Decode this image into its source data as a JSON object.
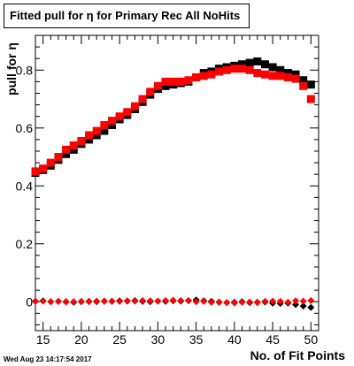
{
  "title": "Fitted pull for η for Primary Rec All NoHits",
  "chart_data": {
    "type": "scatter",
    "xlabel": "No. of Fit Points",
    "ylabel": "pull for η",
    "xlim": [
      14,
      51
    ],
    "ylim": [
      -0.1,
      0.92
    ],
    "xticks": [
      15,
      20,
      25,
      30,
      35,
      40,
      45,
      50
    ],
    "yticks": [
      0,
      0.2,
      0.4,
      0.6,
      0.8
    ],
    "ytick_labels": [
      "0",
      "0.2",
      "0.4",
      "0.6",
      "0.8"
    ],
    "series": [
      {
        "color": "#000000",
        "marker": "square",
        "x": [
          14,
          15,
          16,
          17,
          18,
          19,
          20,
          21,
          22,
          23,
          24,
          25,
          26,
          27,
          28,
          29,
          30,
          31,
          32,
          33,
          34,
          35,
          36,
          37,
          38,
          39,
          40,
          41,
          42,
          43,
          44,
          45,
          46,
          47,
          48,
          49,
          50
        ],
        "y": [
          0.445,
          0.455,
          0.47,
          0.49,
          0.51,
          0.525,
          0.545,
          0.56,
          0.575,
          0.59,
          0.61,
          0.63,
          0.645,
          0.665,
          0.69,
          0.715,
          0.735,
          0.745,
          0.75,
          0.755,
          0.76,
          0.775,
          0.79,
          0.795,
          0.805,
          0.81,
          0.815,
          0.82,
          0.825,
          0.83,
          0.82,
          0.81,
          0.8,
          0.79,
          0.785,
          0.765,
          0.75
        ]
      },
      {
        "color": "#ff0000",
        "marker": "square",
        "x": [
          14,
          15,
          16,
          17,
          18,
          19,
          20,
          21,
          22,
          23,
          24,
          25,
          26,
          27,
          28,
          29,
          30,
          31,
          32,
          33,
          34,
          35,
          36,
          37,
          38,
          39,
          40,
          41,
          42,
          43,
          44,
          45,
          46,
          47,
          48,
          49,
          50
        ],
        "y": [
          0.45,
          0.46,
          0.48,
          0.5,
          0.525,
          0.54,
          0.555,
          0.575,
          0.59,
          0.61,
          0.625,
          0.64,
          0.655,
          0.675,
          0.7,
          0.725,
          0.745,
          0.76,
          0.76,
          0.76,
          0.765,
          0.775,
          0.78,
          0.785,
          0.795,
          0.8,
          0.805,
          0.805,
          0.8,
          0.79,
          0.785,
          0.78,
          0.78,
          0.775,
          0.77,
          0.745,
          0.7
        ]
      },
      {
        "color": "#000000",
        "marker": "diamond",
        "x": [
          14,
          15,
          16,
          17,
          18,
          19,
          20,
          21,
          22,
          23,
          24,
          25,
          26,
          27,
          28,
          29,
          30,
          31,
          32,
          33,
          34,
          35,
          36,
          37,
          38,
          39,
          40,
          41,
          42,
          43,
          44,
          45,
          46,
          47,
          48,
          49,
          50
        ],
        "y": [
          0.002,
          0.003,
          0.0,
          0.001,
          0.0,
          -0.002,
          0.0,
          0.001,
          0.0,
          0.002,
          0.001,
          0.003,
          0.002,
          0.004,
          0.001,
          0.0,
          0.002,
          0.001,
          0.003,
          0.002,
          0.004,
          0.006,
          0.003,
          0.001,
          -0.002,
          -0.003,
          -0.002,
          0.0,
          -0.003,
          -0.002,
          -0.001,
          -0.005,
          -0.006,
          -0.005,
          -0.01,
          -0.015,
          -0.02
        ]
      },
      {
        "color": "#ff0000",
        "marker": "diamond",
        "x": [
          14,
          15,
          16,
          17,
          18,
          19,
          20,
          21,
          22,
          23,
          24,
          25,
          26,
          27,
          28,
          29,
          30,
          31,
          32,
          33,
          34,
          35,
          36,
          37,
          38,
          39,
          40,
          41,
          42,
          43,
          44,
          45,
          46,
          47,
          48,
          49,
          50
        ],
        "y": [
          0.001,
          0.002,
          0.0,
          0.001,
          -0.001,
          0.0,
          0.001,
          0.0,
          0.002,
          0.001,
          0.002,
          0.001,
          0.003,
          0.002,
          0.004,
          0.003,
          0.002,
          0.004,
          0.005,
          0.004,
          0.003,
          0.0,
          0.001,
          -0.002,
          -0.001,
          -0.003,
          -0.004,
          -0.002,
          -0.001,
          -0.003,
          0.001,
          0.002,
          0.001,
          -0.002,
          0.003,
          0.002,
          0.004
        ]
      }
    ]
  },
  "datestamp": "Wed Aug 23 14:17:54 2017"
}
